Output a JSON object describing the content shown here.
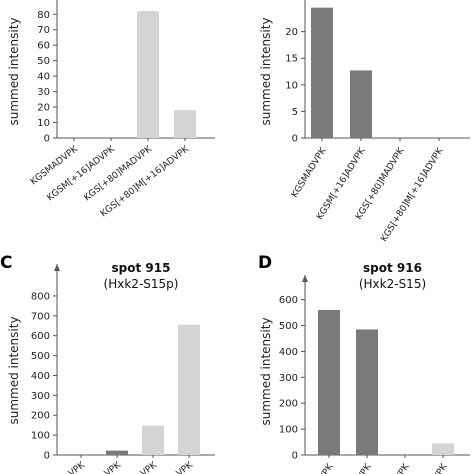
{
  "chart_data": [
    {
      "id": "A",
      "panel_letter": "",
      "type": "bar",
      "title": "",
      "subtitle": "",
      "ylabel": "summed intensity",
      "categories": [
        "KGSMADVPK",
        "KGSM[+16]ADVPK",
        "KGS[+80]MADVPK",
        "KGS[+80]M[+16]ADVPK"
      ],
      "values": [
        0,
        0,
        82,
        18
      ],
      "colors": [
        "#7a7a7a",
        "#7a7a7a",
        "#d4d4d4",
        "#d4d4d4"
      ],
      "yticks": [
        0,
        10,
        20,
        30,
        40,
        50,
        60,
        70,
        80
      ],
      "ylim": [
        0,
        86
      ],
      "grid": false,
      "legend": "none"
    },
    {
      "id": "B",
      "panel_letter": "",
      "type": "bar",
      "title": "",
      "subtitle": "",
      "ylabel": "summed intensity",
      "categories": [
        "KGSMADVPK",
        "KGSM[+16]ADVPK",
        "KGS[+80]MADVPK",
        "KGS[+80]M[+16]ADVPK"
      ],
      "values": [
        24.5,
        12.7,
        0,
        0
      ],
      "colors": [
        "#7a7a7a",
        "#7a7a7a",
        "#d4d4d4",
        "#d4d4d4"
      ],
      "yticks": [
        0,
        5,
        10,
        15,
        20
      ],
      "ylim": [
        0,
        25
      ],
      "grid": false,
      "legend": "none"
    },
    {
      "id": "C",
      "panel_letter": "C",
      "type": "bar",
      "title": "spot 915",
      "subtitle": "(Hxk2-S15p)",
      "ylabel": "summed intensity",
      "categories": [
        "VPK",
        "VPK",
        "VPK",
        "VPK"
      ],
      "values": [
        0,
        22,
        148,
        655
      ],
      "colors": [
        "#7a7a7a",
        "#7a7a7a",
        "#d4d4d4",
        "#d4d4d4"
      ],
      "yticks": [
        0,
        100,
        200,
        300,
        400,
        500,
        600,
        700,
        800
      ],
      "ylim": [
        0,
        850
      ],
      "grid": false,
      "legend": "none"
    },
    {
      "id": "D",
      "panel_letter": "D",
      "type": "bar",
      "title": "spot 916",
      "subtitle": "(Hxk2-S15)",
      "ylabel": "summed intensity",
      "categories": [
        "VPK",
        "VPK",
        "VPK",
        "VPK"
      ],
      "values": [
        560,
        485,
        0,
        45
      ],
      "colors": [
        "#7a7a7a",
        "#7a7a7a",
        "#d4d4d4",
        "#d4d4d4"
      ],
      "yticks": [
        0,
        100,
        200,
        300,
        400,
        500,
        600
      ],
      "ylim": [
        0,
        645
      ],
      "grid": false,
      "legend": "none"
    }
  ]
}
